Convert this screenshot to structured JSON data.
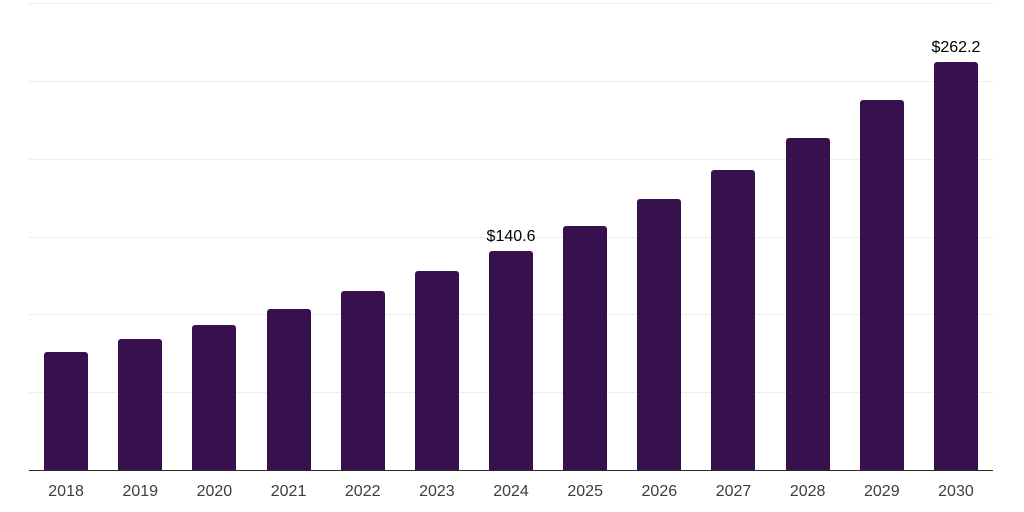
{
  "chart": {
    "background_color": "#ffffff",
    "bar_color": "#36114e",
    "axis_line_color": "#2b2b2b",
    "gridline_color": "#ededed",
    "tick_label_color": "#3d3d3d",
    "value_label_color": "#000000"
  },
  "chart_data": {
    "type": "bar",
    "title": "",
    "xlabel": "",
    "ylabel": "",
    "categories": [
      "2018",
      "2019",
      "2020",
      "2021",
      "2022",
      "2023",
      "2024",
      "2025",
      "2026",
      "2027",
      "2028",
      "2029",
      "2030"
    ],
    "values": [
      75.7,
      83.9,
      93.1,
      103.5,
      115.1,
      127.9,
      140.6,
      156.8,
      174.4,
      193.0,
      213.5,
      237.5,
      262.2
    ],
    "data_labels": [
      null,
      null,
      null,
      null,
      null,
      null,
      "$140.6",
      null,
      null,
      null,
      null,
      null,
      "$262.2"
    ],
    "ylim": [
      0,
      300
    ],
    "gridline_interval": 50,
    "grid": true,
    "legend": "none"
  }
}
